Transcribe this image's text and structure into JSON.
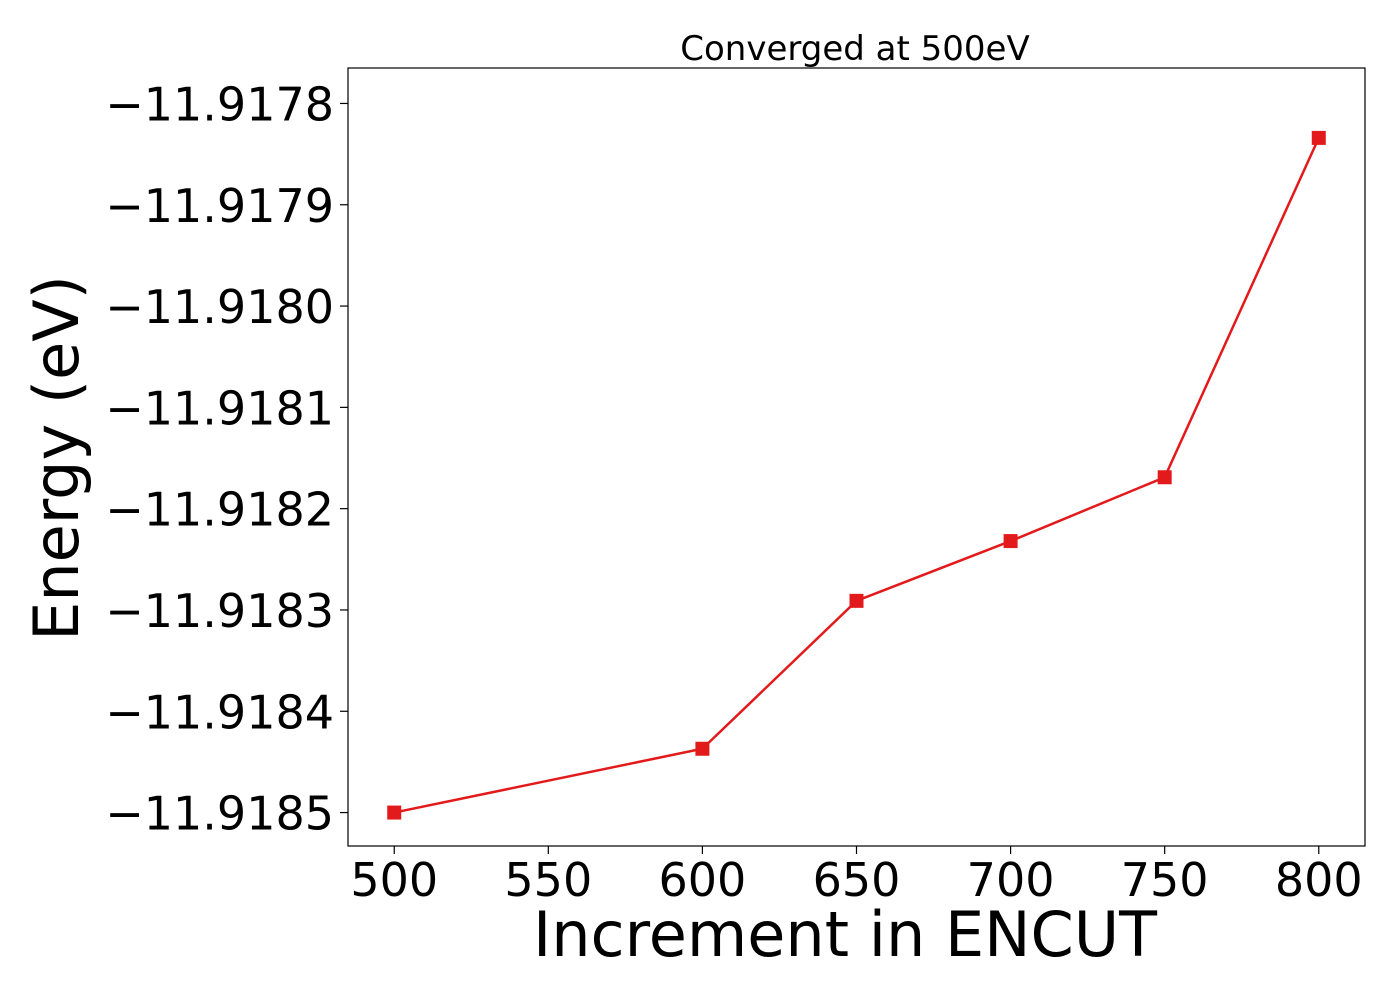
{
  "chart_data": {
    "type": "line",
    "title": "Converged at 500eV",
    "xlabel": "Increment in ENCUT",
    "ylabel": "Energy (eV)",
    "x": [
      500,
      600,
      650,
      700,
      750,
      800
    ],
    "series": [
      {
        "values": [
          -11.9185,
          -11.918437,
          -11.918291,
          -11.918232,
          -11.918169,
          -11.917834
        ],
        "color": "#e31a1c",
        "marker": "square"
      }
    ],
    "xlim": [
      485,
      815
    ],
    "ylim": [
      -11.918533,
      -11.917765
    ],
    "xticks": [
      500,
      550,
      600,
      650,
      700,
      750,
      800
    ],
    "xtick_labels": [
      "500",
      "550",
      "600",
      "650",
      "700",
      "750",
      "800"
    ],
    "yticks": [
      -11.9185,
      -11.9184,
      -11.9183,
      -11.9182,
      -11.9181,
      -11.918,
      -11.9179,
      -11.9178
    ],
    "ytick_labels": [
      "−11.9185",
      "−11.9184",
      "−11.9183",
      "−11.9182",
      "−11.9181",
      "−11.9180",
      "−11.9179",
      "−11.9178"
    ],
    "grid": false,
    "legend": false
  }
}
